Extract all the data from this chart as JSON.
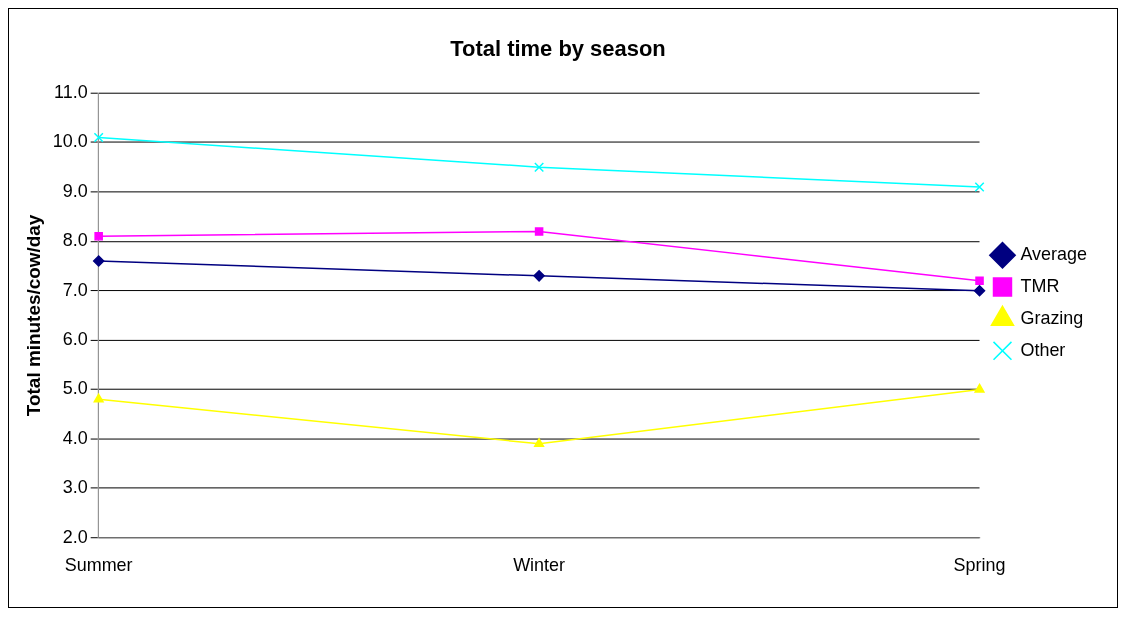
{
  "chart_data": {
    "type": "line",
    "title": "Total time by season",
    "ylabel": "Total minutes/cow/day",
    "categories": [
      "Summer",
      "Winter",
      "Spring"
    ],
    "series": [
      {
        "name": "Average",
        "color": "#000080",
        "marker": "diamond",
        "values": [
          7.6,
          7.3,
          7.0
        ]
      },
      {
        "name": "TMR",
        "color": "#ff00ff",
        "marker": "square",
        "values": [
          8.1,
          8.2,
          7.2
        ]
      },
      {
        "name": "Grazing",
        "color": "#ffff00",
        "marker": "triangle",
        "values": [
          4.8,
          3.9,
          5.0
        ]
      },
      {
        "name": "Other",
        "color": "#00ffff",
        "marker": "cross",
        "values": [
          10.1,
          9.5,
          9.1
        ]
      }
    ],
    "ylim": [
      2,
      11
    ],
    "yticks": [
      {
        "value": 2,
        "label": "2.0"
      },
      {
        "value": 3,
        "label": "3.0"
      },
      {
        "value": 4,
        "label": "4.0"
      },
      {
        "value": 5,
        "label": "5.0"
      },
      {
        "value": 6,
        "label": "6.0"
      },
      {
        "value": 7,
        "label": "7.0"
      },
      {
        "value": 8,
        "label": "8.0"
      },
      {
        "value": 9,
        "label": "9.0"
      },
      {
        "value": 10,
        "label": "10.0"
      },
      {
        "value": 11,
        "label": "11.0"
      }
    ],
    "grid": "y",
    "legend": "right"
  }
}
